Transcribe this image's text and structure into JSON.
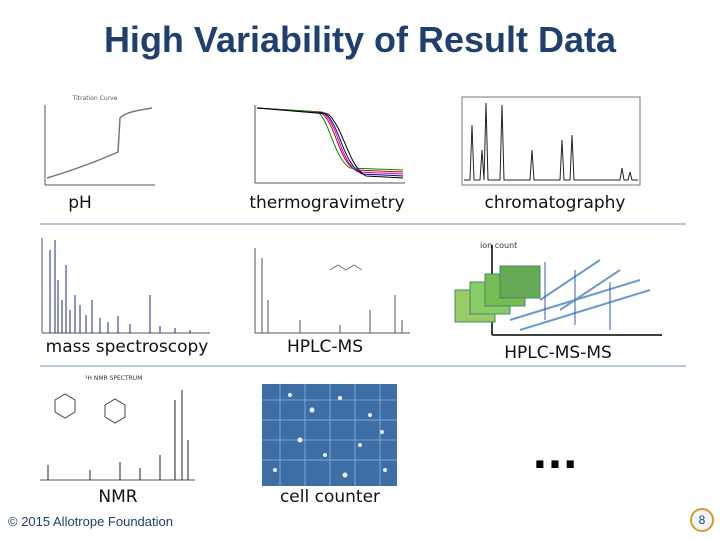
{
  "title": "High Variability of Result Data",
  "panels": [
    {
      "label": "pH"
    },
    {
      "label": "thermogravimetry"
    },
    {
      "label": "chromatography"
    },
    {
      "label": "mass spectroscopy"
    },
    {
      "label": "HPLC-MS"
    },
    {
      "label": "HPLC-MS-MS"
    },
    {
      "label": "NMR"
    },
    {
      "label": "cell counter"
    }
  ],
  "ellipsis": "...",
  "footer": "© 2015 Allotrope Foundation",
  "page_number": "8"
}
